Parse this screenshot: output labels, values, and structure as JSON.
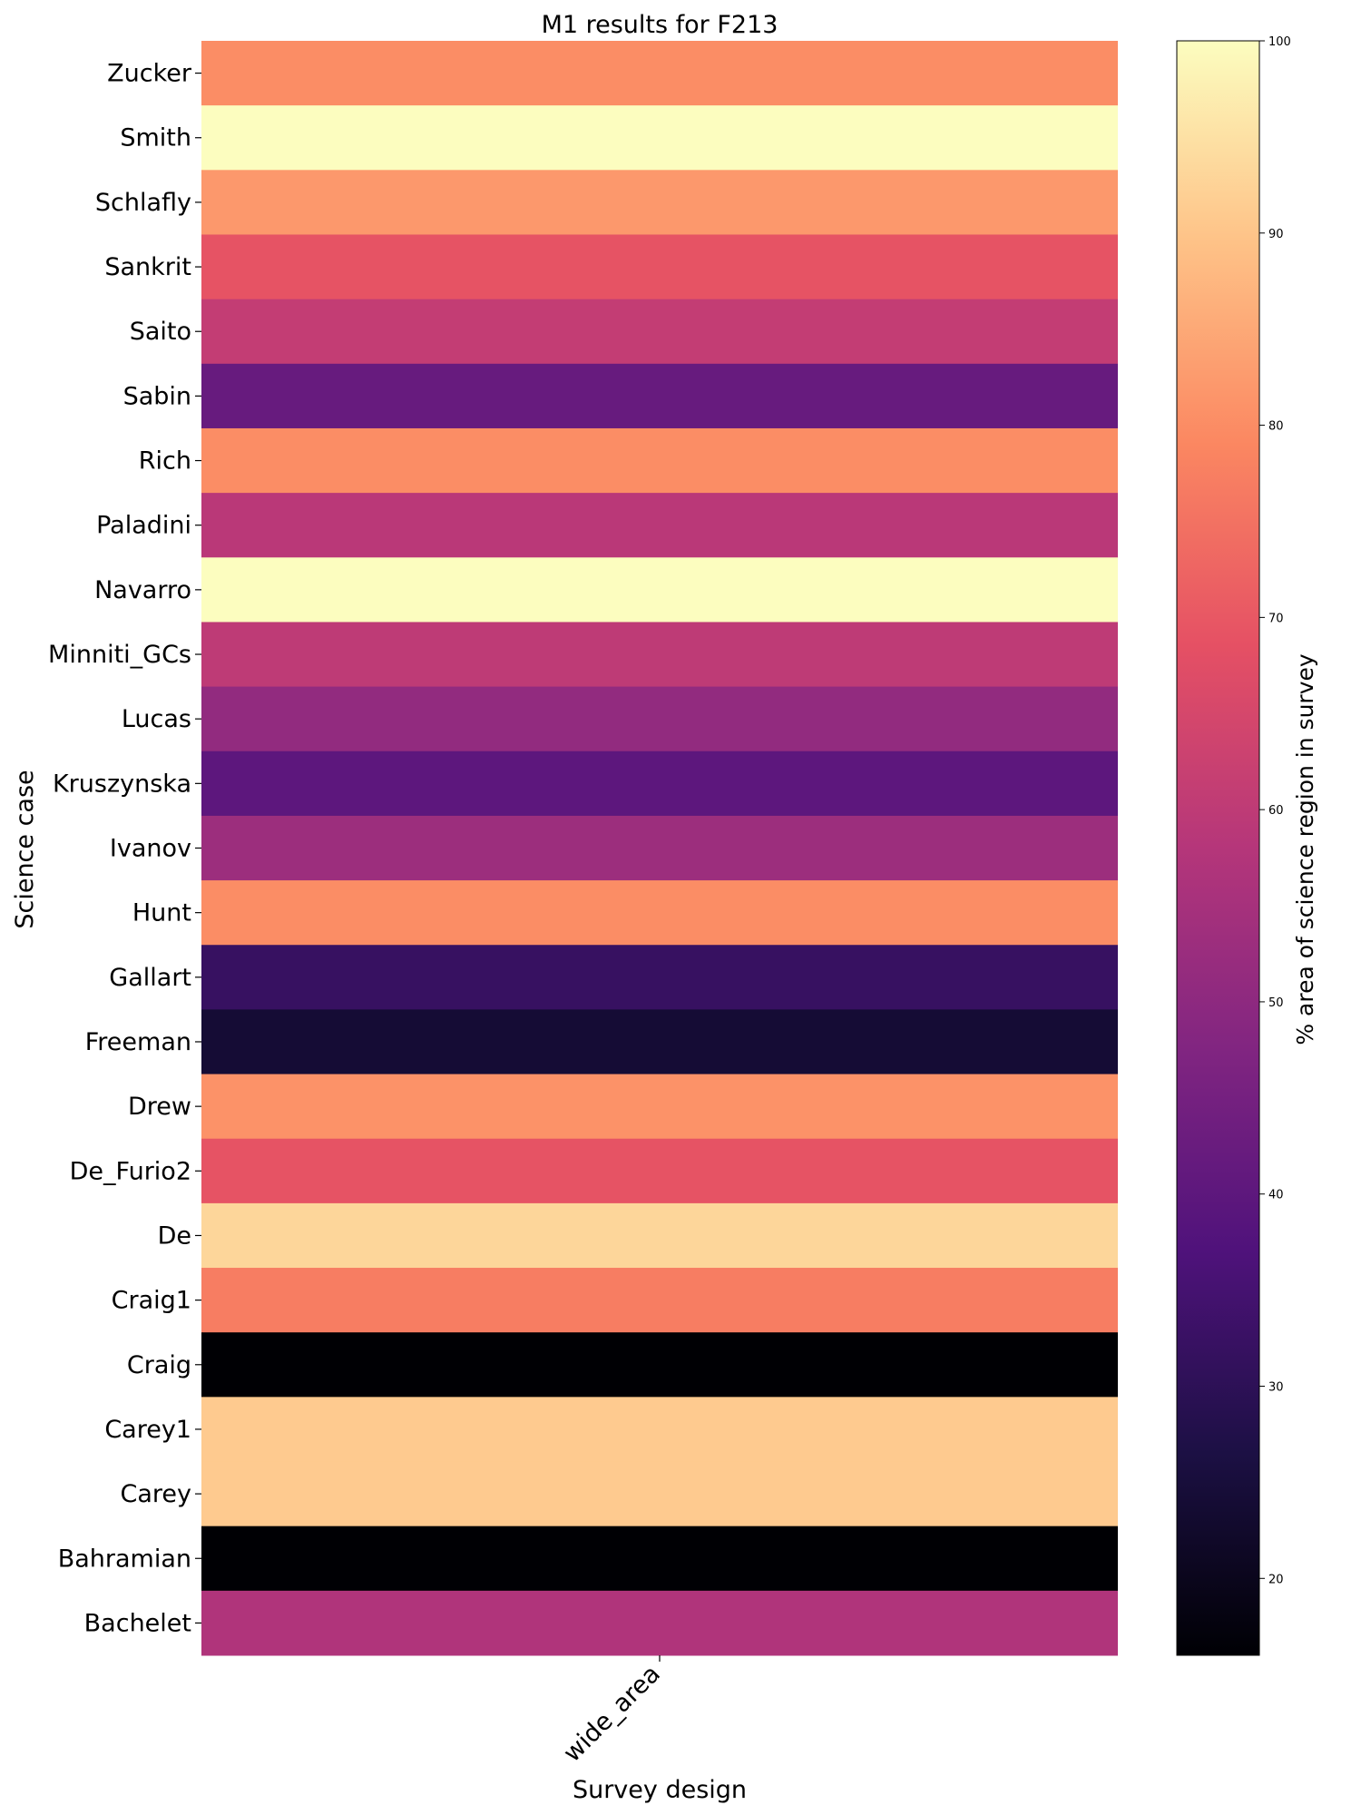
{
  "chart_data": {
    "type": "heatmap",
    "title": "M1 results for F213",
    "xlabel": "Survey design",
    "ylabel": "Science case",
    "x_categories": [
      "wide_area"
    ],
    "y_categories": [
      "Zucker",
      "Smith",
      "Schlafly",
      "Sankrit",
      "Saito",
      "Sabin",
      "Rich",
      "Paladini",
      "Navarro",
      "Minniti_GCs",
      "Lucas",
      "Kruszynska",
      "Ivanov",
      "Hunt",
      "Gallart",
      "Freeman",
      "Drew",
      "De_Furio2",
      "De",
      "Craig1",
      "Craig",
      "Carey1",
      "Carey",
      "Bahramian",
      "Bachelet"
    ],
    "values": [
      80,
      100,
      82,
      69,
      61,
      42,
      80,
      59,
      100,
      60,
      51,
      40,
      53,
      80,
      32,
      24,
      81,
      69,
      93,
      77,
      16,
      91,
      91,
      16,
      57
    ],
    "colorbar": {
      "label": "% area of science region in survey",
      "min": 16,
      "max": 100,
      "ticks": [
        "20",
        "30",
        "40",
        "50",
        "60",
        "70",
        "80",
        "90",
        "100"
      ],
      "colormap": "magma"
    }
  }
}
